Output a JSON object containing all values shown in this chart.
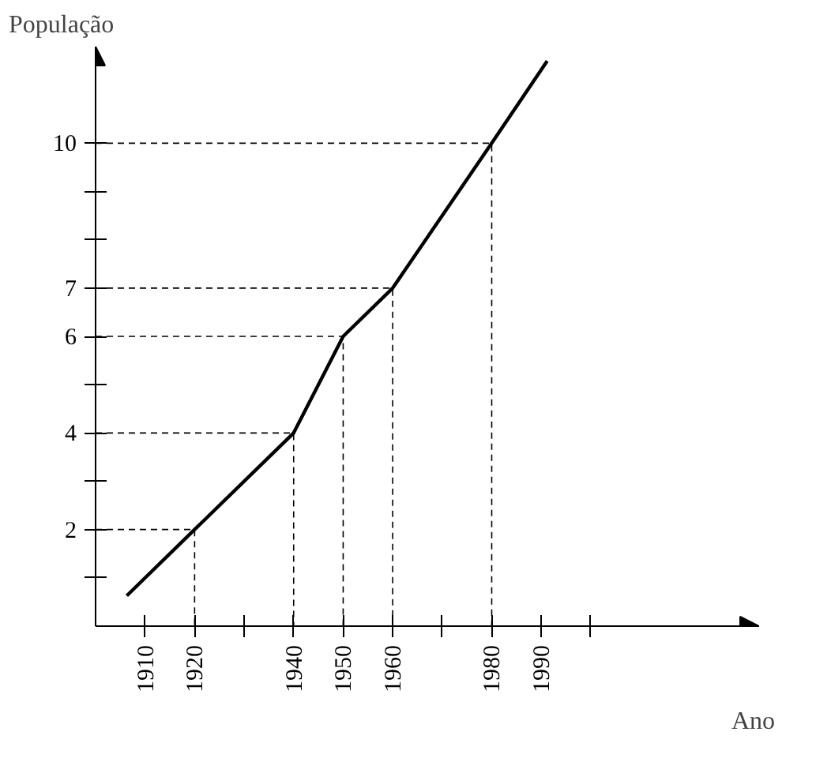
{
  "chart_data": {
    "type": "line",
    "xlabel": "Ano",
    "ylabel": "População",
    "x": [
      1906.3,
      1920,
      1940,
      1950,
      1960,
      1980,
      1991.2
    ],
    "series": [
      {
        "color": "#000000",
        "values": [
          0.63,
          2,
          4,
          6,
          7,
          10,
          11.7
        ]
      },
      {
        "color": "#000000",
        "line_style": "dashed",
        "x": [
          1900,
          1920,
          1920
        ],
        "values": [
          2,
          2,
          0
        ]
      },
      {
        "color": "#000000",
        "line_style": "dashed",
        "x": [
          1900,
          1940,
          1940
        ],
        "values": [
          4,
          4,
          0
        ]
      },
      {
        "color": "#000000",
        "line_style": "dashed",
        "x": [
          1900,
          1950,
          1950
        ],
        "values": [
          6,
          6,
          0
        ]
      },
      {
        "color": "#000000",
        "line_style": "dashed",
        "x": [
          1900,
          1960,
          1960
        ],
        "values": [
          7,
          7,
          0
        ]
      },
      {
        "color": "#000000",
        "line_style": "dashed",
        "x": [
          1900,
          1980,
          1980
        ],
        "values": [
          10,
          10,
          0
        ]
      }
    ],
    "xlim": [
      1900,
      2034
    ],
    "ylim": [
      0,
      12
    ],
    "xticks": [
      1910,
      1920,
      {
        "value": 1930,
        "label": null
      },
      1940,
      1950,
      1960,
      {
        "value": 1970,
        "label": null
      },
      1980,
      1990,
      {
        "value": 2000,
        "label": null
      }
    ],
    "yticks": [
      {
        "value": 1,
        "label": null
      },
      2,
      {
        "value": 3,
        "label": null
      },
      4,
      {
        "value": 5,
        "label": null
      },
      6,
      7,
      {
        "value": 8,
        "label": null
      },
      {
        "value": 9,
        "label": null
      },
      10
    ],
    "grid": false,
    "marker": "none",
    "line_style": "solid"
  }
}
